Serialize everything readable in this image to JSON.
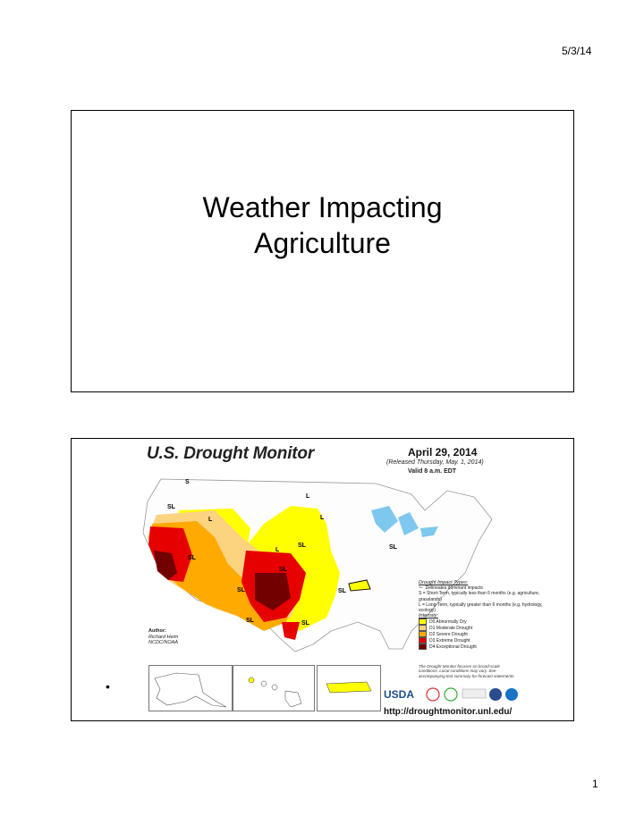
{
  "header": {
    "date": "5/3/14"
  },
  "slide1": {
    "title_line1": "Weather Impacting",
    "title_line2": "Agriculture"
  },
  "slide2": {
    "map": {
      "title": "U.S. Drought Monitor",
      "date": "April 29, 2014",
      "released": "(Released Thursday, May. 1, 2014)",
      "valid": "Valid 8 a.m. EDT",
      "impact_types_heading": "Drought Impact Types:",
      "impact_line": "Delineates dominant impacts",
      "short_term": "S = Short-Term, typically less than 6 months (e.g. agriculture, grasslands)",
      "long_term": "L = Long-Term, typically greater than 6 months (e.g. hydrology, ecology)",
      "intensity_heading": "Intensity:",
      "intensity": [
        {
          "label": "D0 Abnormally Dry",
          "color": "#ffff00"
        },
        {
          "label": "D1 Moderate Drought",
          "color": "#fcd37f"
        },
        {
          "label": "D2 Severe Drought",
          "color": "#ffaa00"
        },
        {
          "label": "D3 Extreme Drought",
          "color": "#e60000"
        },
        {
          "label": "D4 Exceptional Drought",
          "color": "#730000"
        }
      ],
      "author_label": "Author:",
      "author_name": "Richard Heim",
      "author_org": "NCDC/NOAA",
      "note": "The Drought Monitor focuses on broad-scale conditions. Local conditions may vary. See accompanying text summary for forecast statements.",
      "url": "http://droughtmonitor.unl.edu/",
      "usda": "USDA",
      "region_labels": [
        "S",
        "SL",
        "L",
        "L",
        "L",
        "SL",
        "SL",
        "SL",
        "L",
        "SL",
        "SL",
        "SL",
        "SL",
        "SL",
        "L"
      ]
    },
    "bullet": "•"
  },
  "footer": {
    "page": "1"
  }
}
